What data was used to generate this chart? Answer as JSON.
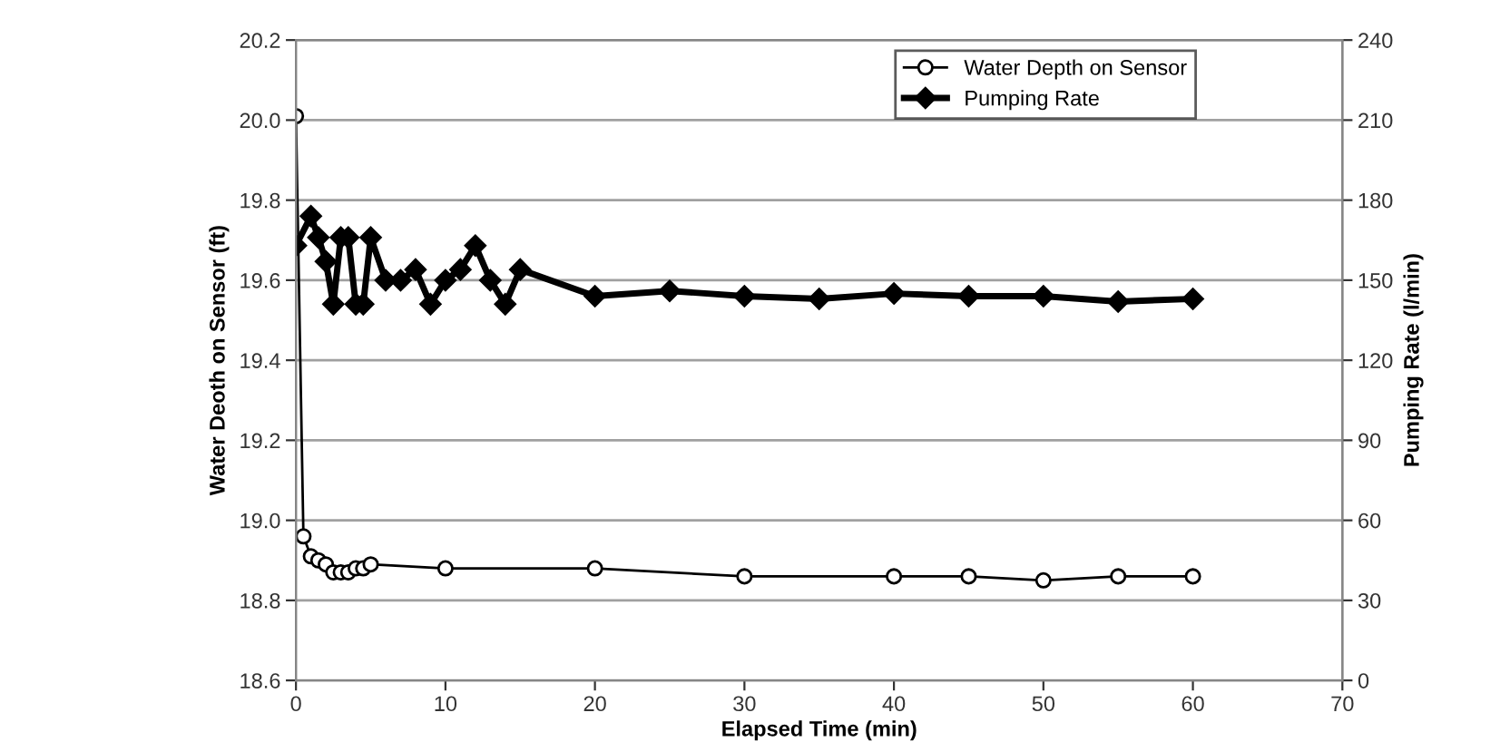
{
  "chart_data": {
    "type": "line",
    "xlabel": "Elapsed Time (min)",
    "ylabel": "Water Deoth on Sensor (ft)",
    "y2label": "Pumping Rate (l/min)",
    "xlim": [
      0,
      70
    ],
    "xticks": [
      0,
      10,
      20,
      30,
      40,
      50,
      60,
      70
    ],
    "ylim": [
      18.6,
      20.2
    ],
    "yticks": [
      18.6,
      18.8,
      {
        "value": 19,
        "label": "19.0"
      },
      19.2,
      19.4,
      19.6,
      19.8,
      {
        "value": 20,
        "label": "20.0"
      },
      20.2
    ],
    "y2lim": [
      0,
      240
    ],
    "y2ticks": [
      0,
      30,
      60,
      90,
      120,
      150,
      180,
      210,
      240
    ],
    "grid": "y",
    "legend": "top right",
    "series": [
      {
        "name": "Water Depth on Sensor",
        "color": "#000000",
        "marker": "circle",
        "x": [
          0,
          0.5,
          1,
          1.5,
          2,
          2.5,
          3,
          3.5,
          4,
          4.5,
          5,
          10,
          20,
          30,
          40,
          45,
          50,
          55,
          60
        ],
        "values": [
          20.01,
          18.96,
          18.91,
          18.9,
          18.89,
          18.87,
          18.87,
          18.87,
          18.88,
          18.88,
          18.89,
          18.88,
          18.88,
          18.86,
          18.86,
          18.86,
          18.85,
          18.86,
          18.86
        ]
      },
      {
        "name": "Pumping Rate",
        "color": "#000000",
        "marker": "diamond",
        "axis": "y2",
        "x": [
          0,
          1,
          1.5,
          2,
          2.5,
          3,
          3.5,
          4,
          4.5,
          5,
          6,
          7,
          8,
          9,
          10,
          11,
          12,
          13,
          14,
          15,
          20,
          25,
          30,
          35,
          40,
          45,
          50,
          55,
          60
        ],
        "values": [
          163,
          174,
          166,
          157,
          141,
          166,
          166,
          141,
          141,
          166,
          150,
          150,
          154,
          141,
          150,
          154,
          163,
          150,
          141,
          154,
          144,
          146,
          144,
          143,
          145,
          144,
          144,
          142,
          143
        ]
      }
    ]
  }
}
